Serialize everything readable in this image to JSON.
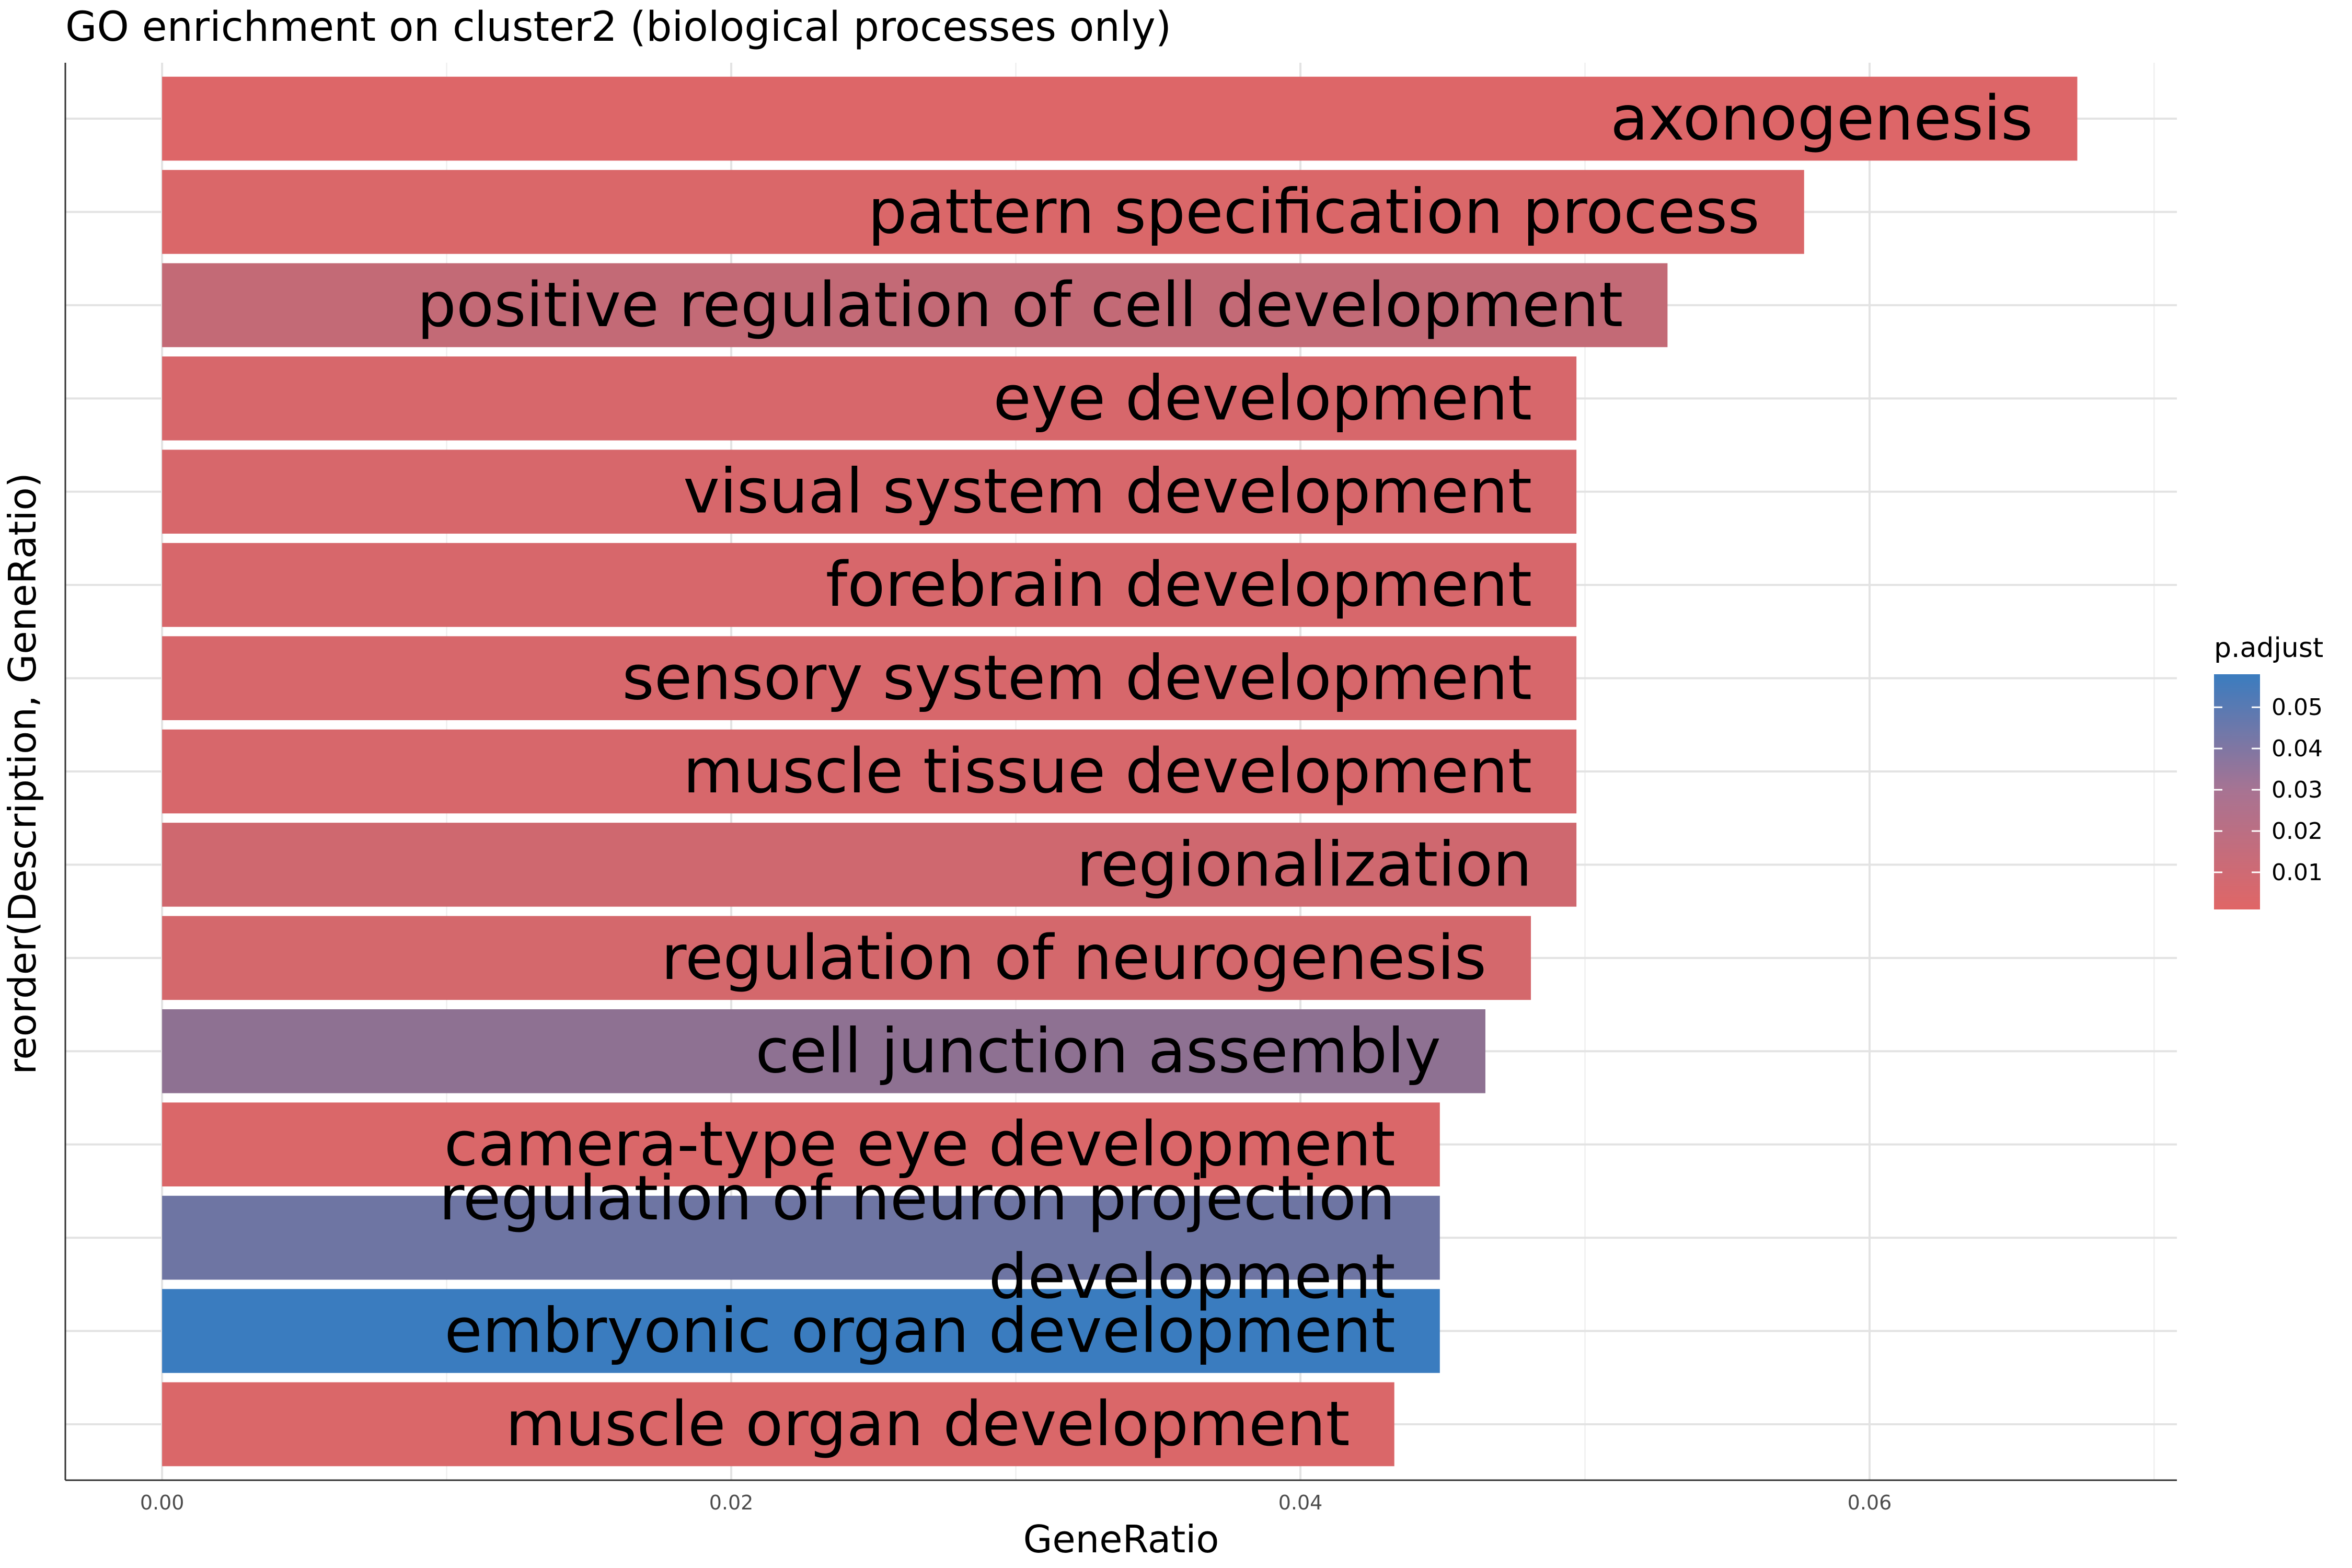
{
  "chart_data": {
    "type": "bar",
    "orientation": "horizontal",
    "title": "GO enrichment on cluster2 (biological processes only)",
    "xlabel": "GeneRatio",
    "ylabel": "reorder(Description, GeneRatio)",
    "xlim": [
      -0.0034,
      0.0708
    ],
    "x_ticks": [
      0.0,
      0.02,
      0.04,
      0.06
    ],
    "x_tick_labels": [
      "0.00",
      "0.02",
      "0.04",
      "0.06"
    ],
    "grid": true,
    "legend": {
      "title": "p.adjust",
      "placement": "right",
      "color_low": "#e06666",
      "color_high": "#3a7cbf",
      "range": [
        0.001,
        0.058
      ],
      "ticks": [
        0.01,
        0.02,
        0.03,
        0.04,
        0.05
      ],
      "tick_labels": [
        "0.01",
        "0.02",
        "0.03",
        "0.04",
        "0.05"
      ]
    },
    "series": [
      {
        "categories": [
          "axonogenesis",
          "pattern specification process",
          "positive regulation of cell development",
          "eye development",
          "visual system development",
          "forebrain development",
          "sensory system development",
          "muscle tissue development",
          "regionalization",
          "regulation of neurogenesis",
          "cell junction assembly",
          "camera-type eye development",
          "regulation of neuron projection development",
          "embryonic organ development",
          "muscle organ development"
        ],
        "values": [
          0.0673,
          0.0577,
          0.0529,
          0.0497,
          0.0497,
          0.0497,
          0.0497,
          0.0497,
          0.0497,
          0.0481,
          0.0465,
          0.0449,
          0.0449,
          0.0449,
          0.0433
        ],
        "p_adjust": [
          0.002,
          0.003,
          0.011,
          0.004,
          0.004,
          0.004,
          0.004,
          0.004,
          0.007,
          0.005,
          0.029,
          0.003,
          0.04,
          0.058,
          0.003
        ],
        "label_lines": [
          [
            "axonogenesis"
          ],
          [
            "pattern specification process"
          ],
          [
            "positive regulation of cell development"
          ],
          [
            "eye development"
          ],
          [
            "visual system development"
          ],
          [
            "forebrain development"
          ],
          [
            "sensory system development"
          ],
          [
            "muscle tissue development"
          ],
          [
            "regionalization"
          ],
          [
            "regulation of neurogenesis"
          ],
          [
            "cell junction assembly"
          ],
          [
            "camera-type eye development"
          ],
          [
            "regulation of neuron projection",
            "development"
          ],
          [
            "embryonic organ development"
          ],
          [
            "muscle organ development"
          ]
        ]
      }
    ]
  }
}
